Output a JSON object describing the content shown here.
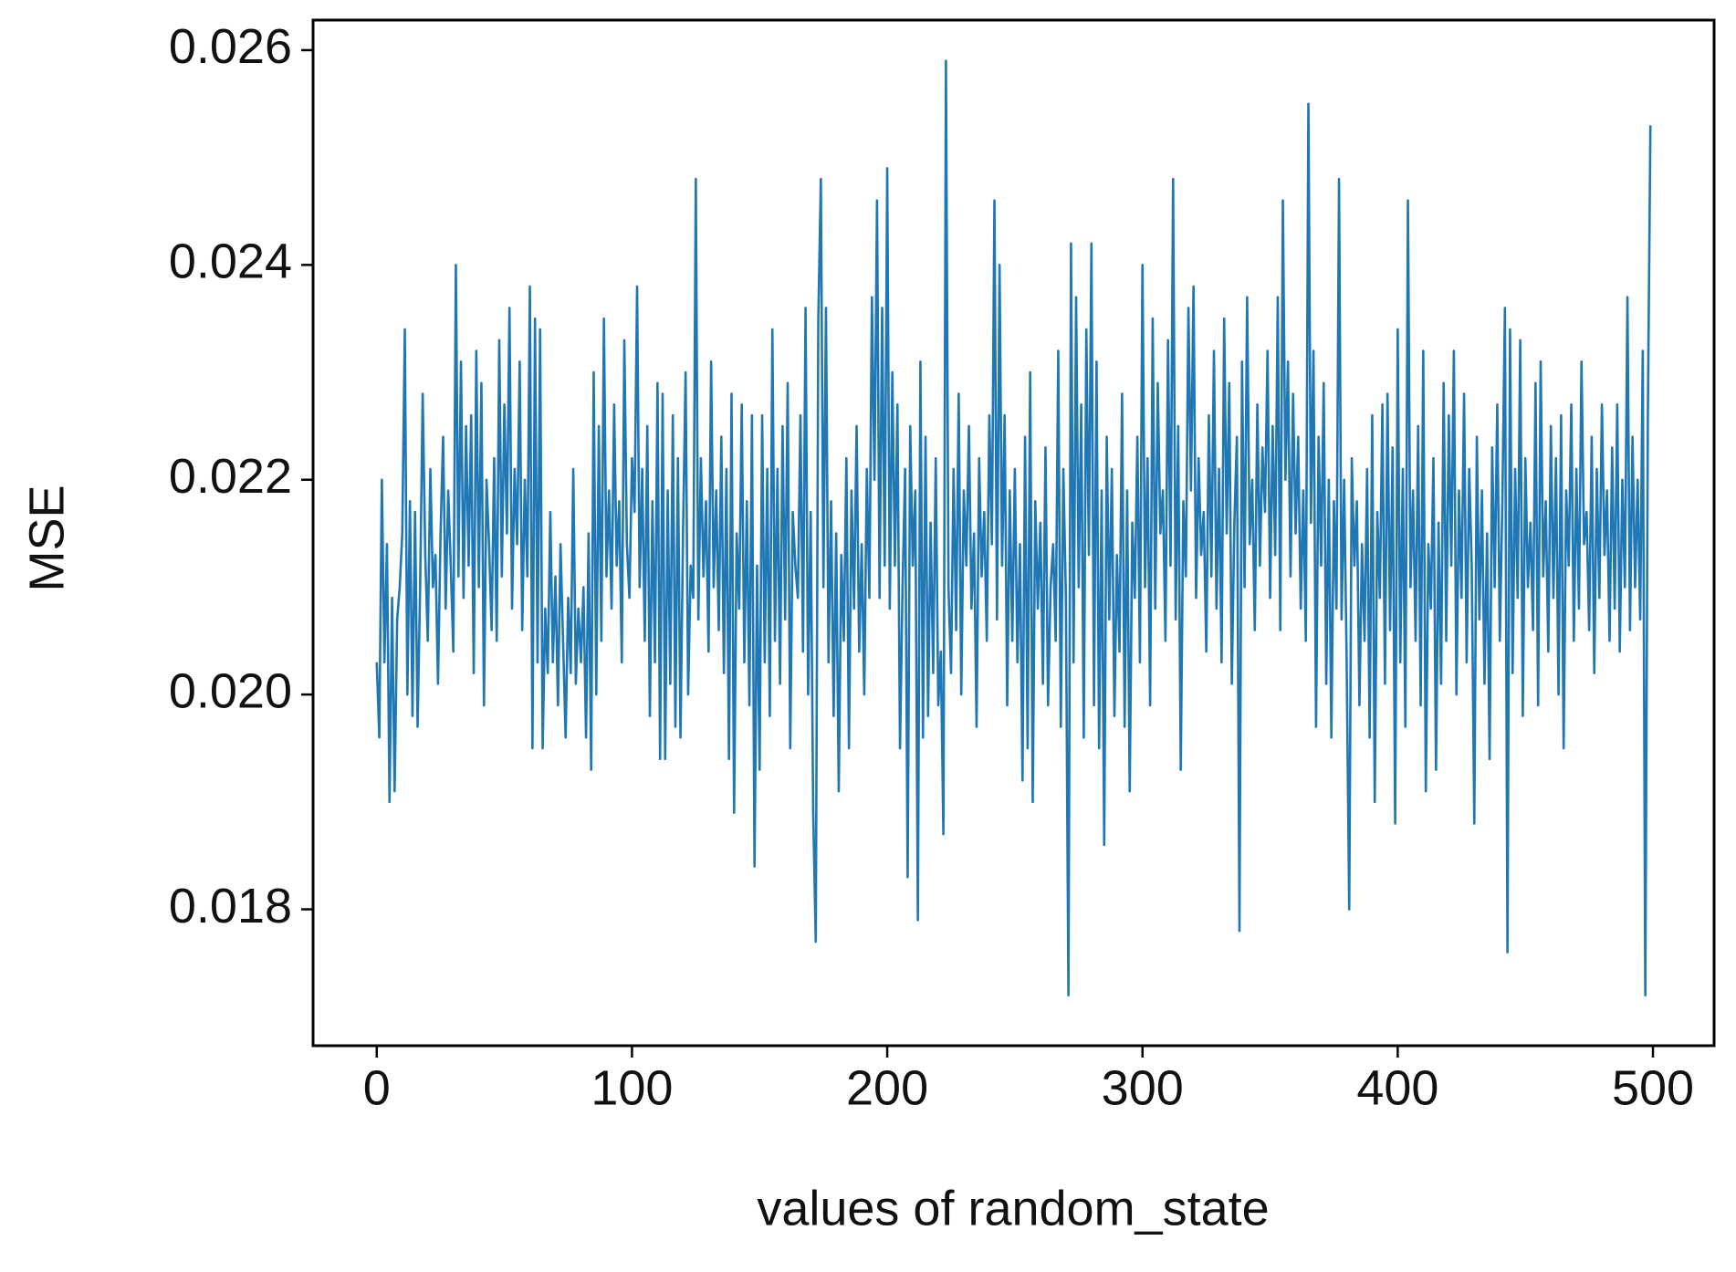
{
  "chart_data": {
    "type": "line",
    "xlabel": "values of random_state",
    "ylabel": "MSE",
    "color": "#1f77b4",
    "grid": false,
    "xlim": [
      -24.95,
      523.95
    ],
    "xticks": [
      0,
      100,
      200,
      300,
      400,
      500
    ],
    "ylim": [
      0.01673,
      0.02628
    ],
    "yticks": [
      {
        "value": 0.018,
        "label": "0.018"
      },
      {
        "value": 0.02,
        "label": "0.020"
      },
      {
        "value": 0.022,
        "label": "0.022"
      },
      {
        "value": 0.024,
        "label": "0.024"
      },
      {
        "value": 0.026,
        "label": "0.026"
      }
    ],
    "x": [
      0,
      1,
      2,
      3,
      4,
      5,
      6,
      7,
      8,
      9,
      10,
      11,
      12,
      13,
      14,
      15,
      16,
      17,
      18,
      19,
      20,
      21,
      22,
      23,
      24,
      25,
      26,
      27,
      28,
      29,
      30,
      31,
      32,
      33,
      34,
      35,
      36,
      37,
      38,
      39,
      40,
      41,
      42,
      43,
      44,
      45,
      46,
      47,
      48,
      49,
      50,
      51,
      52,
      53,
      54,
      55,
      56,
      57,
      58,
      59,
      60,
      61,
      62,
      63,
      64,
      65,
      66,
      67,
      68,
      69,
      70,
      71,
      72,
      73,
      74,
      75,
      76,
      77,
      78,
      79,
      80,
      81,
      82,
      83,
      84,
      85,
      86,
      87,
      88,
      89,
      90,
      91,
      92,
      93,
      94,
      95,
      96,
      97,
      98,
      99,
      100,
      101,
      102,
      103,
      104,
      105,
      106,
      107,
      108,
      109,
      110,
      111,
      112,
      113,
      114,
      115,
      116,
      117,
      118,
      119,
      120,
      121,
      122,
      123,
      124,
      125,
      126,
      127,
      128,
      129,
      130,
      131,
      132,
      133,
      134,
      135,
      136,
      137,
      138,
      139,
      140,
      141,
      142,
      143,
      144,
      145,
      146,
      147,
      148,
      149,
      150,
      151,
      152,
      153,
      154,
      155,
      156,
      157,
      158,
      159,
      160,
      161,
      162,
      163,
      164,
      165,
      166,
      167,
      168,
      169,
      170,
      171,
      172,
      173,
      174,
      175,
      176,
      177,
      178,
      179,
      180,
      181,
      182,
      183,
      184,
      185,
      186,
      187,
      188,
      189,
      190,
      191,
      192,
      193,
      194,
      195,
      196,
      197,
      198,
      199,
      200,
      201,
      202,
      203,
      204,
      205,
      206,
      207,
      208,
      209,
      210,
      211,
      212,
      213,
      214,
      215,
      216,
      217,
      218,
      219,
      220,
      221,
      222,
      223,
      224,
      225,
      226,
      227,
      228,
      229,
      230,
      231,
      232,
      233,
      234,
      235,
      236,
      237,
      238,
      239,
      240,
      241,
      242,
      243,
      244,
      245,
      246,
      247,
      248,
      249,
      250,
      251,
      252,
      253,
      254,
      255,
      256,
      257,
      258,
      259,
      260,
      261,
      262,
      263,
      264,
      265,
      266,
      267,
      268,
      269,
      270,
      271,
      272,
      273,
      274,
      275,
      276,
      277,
      278,
      279,
      280,
      281,
      282,
      283,
      284,
      285,
      286,
      287,
      288,
      289,
      290,
      291,
      292,
      293,
      294,
      295,
      296,
      297,
      298,
      299,
      300,
      301,
      302,
      303,
      304,
      305,
      306,
      307,
      308,
      309,
      310,
      311,
      312,
      313,
      314,
      315,
      316,
      317,
      318,
      319,
      320,
      321,
      322,
      323,
      324,
      325,
      326,
      327,
      328,
      329,
      330,
      331,
      332,
      333,
      334,
      335,
      336,
      337,
      338,
      339,
      340,
      341,
      342,
      343,
      344,
      345,
      346,
      347,
      348,
      349,
      350,
      351,
      352,
      353,
      354,
      355,
      356,
      357,
      358,
      359,
      360,
      361,
      362,
      363,
      364,
      365,
      366,
      367,
      368,
      369,
      370,
      371,
      372,
      373,
      374,
      375,
      376,
      377,
      378,
      379,
      380,
      381,
      382,
      383,
      384,
      385,
      386,
      387,
      388,
      389,
      390,
      391,
      392,
      393,
      394,
      395,
      396,
      397,
      398,
      399,
      400,
      401,
      402,
      403,
      404,
      405,
      406,
      407,
      408,
      409,
      410,
      411,
      412,
      413,
      414,
      415,
      416,
      417,
      418,
      419,
      420,
      421,
      422,
      423,
      424,
      425,
      426,
      427,
      428,
      429,
      430,
      431,
      432,
      433,
      434,
      435,
      436,
      437,
      438,
      439,
      440,
      441,
      442,
      443,
      444,
      445,
      446,
      447,
      448,
      449,
      450,
      451,
      452,
      453,
      454,
      455,
      456,
      457,
      458,
      459,
      460,
      461,
      462,
      463,
      464,
      465,
      466,
      467,
      468,
      469,
      470,
      471,
      472,
      473,
      474,
      475,
      476,
      477,
      478,
      479,
      480,
      481,
      482,
      483,
      484,
      485,
      486,
      487,
      488,
      489,
      490,
      491,
      492,
      493,
      494,
      495,
      496,
      497,
      498,
      499
    ],
    "values": [
      0.0203,
      0.0196,
      0.022,
      0.0203,
      0.0214,
      0.019,
      0.0209,
      0.0191,
      0.0207,
      0.021,
      0.0215,
      0.0234,
      0.02,
      0.0218,
      0.0198,
      0.0217,
      0.0197,
      0.021,
      0.0228,
      0.0213,
      0.0205,
      0.0221,
      0.021,
      0.0213,
      0.0201,
      0.0215,
      0.0224,
      0.0208,
      0.0219,
      0.0212,
      0.0204,
      0.024,
      0.0211,
      0.0231,
      0.0209,
      0.0225,
      0.0212,
      0.0226,
      0.0202,
      0.0232,
      0.021,
      0.0229,
      0.0199,
      0.022,
      0.0214,
      0.0206,
      0.0222,
      0.0205,
      0.0233,
      0.0211,
      0.0227,
      0.0215,
      0.0236,
      0.0208,
      0.0221,
      0.0214,
      0.0231,
      0.0206,
      0.022,
      0.0211,
      0.0238,
      0.0195,
      0.0235,
      0.0203,
      0.0234,
      0.0195,
      0.0208,
      0.0202,
      0.0217,
      0.0203,
      0.0211,
      0.0199,
      0.0214,
      0.0205,
      0.0196,
      0.0209,
      0.0202,
      0.0221,
      0.0201,
      0.0208,
      0.0203,
      0.021,
      0.0196,
      0.0215,
      0.0193,
      0.023,
      0.02,
      0.0225,
      0.0205,
      0.0235,
      0.0211,
      0.0219,
      0.0208,
      0.0227,
      0.0212,
      0.0218,
      0.0203,
      0.0233,
      0.0214,
      0.0209,
      0.0222,
      0.0217,
      0.0238,
      0.021,
      0.0221,
      0.0205,
      0.0225,
      0.0198,
      0.0218,
      0.0203,
      0.0229,
      0.0194,
      0.0228,
      0.0194,
      0.0219,
      0.0201,
      0.0226,
      0.0197,
      0.0222,
      0.0196,
      0.0215,
      0.023,
      0.02,
      0.0212,
      0.0209,
      0.0248,
      0.0207,
      0.0222,
      0.0211,
      0.0218,
      0.0204,
      0.0231,
      0.021,
      0.0219,
      0.0206,
      0.0224,
      0.0202,
      0.0221,
      0.0194,
      0.0228,
      0.0189,
      0.0215,
      0.0208,
      0.0227,
      0.0203,
      0.0218,
      0.0199,
      0.0226,
      0.0184,
      0.0212,
      0.0193,
      0.0226,
      0.0203,
      0.0221,
      0.0198,
      0.0234,
      0.0205,
      0.0221,
      0.0201,
      0.0225,
      0.0207,
      0.0229,
      0.0195,
      0.0217,
      0.0212,
      0.0209,
      0.0226,
      0.0204,
      0.0236,
      0.02,
      0.0217,
      0.0189,
      0.0177,
      0.0235,
      0.0248,
      0.021,
      0.0236,
      0.0203,
      0.0218,
      0.0198,
      0.0215,
      0.0191,
      0.0213,
      0.0205,
      0.0222,
      0.0195,
      0.0219,
      0.0208,
      0.0225,
      0.0204,
      0.0214,
      0.02,
      0.0221,
      0.0209,
      0.0237,
      0.022,
      0.0246,
      0.0209,
      0.0236,
      0.0212,
      0.0249,
      0.0208,
      0.023,
      0.0212,
      0.0227,
      0.0195,
      0.021,
      0.0221,
      0.0183,
      0.0225,
      0.0212,
      0.0219,
      0.0179,
      0.0231,
      0.0196,
      0.0224,
      0.0198,
      0.0216,
      0.0202,
      0.0222,
      0.0199,
      0.0204,
      0.0187,
      0.0259,
      0.021,
      0.0202,
      0.0221,
      0.0206,
      0.0228,
      0.02,
      0.0219,
      0.0212,
      0.0225,
      0.0208,
      0.0215,
      0.0197,
      0.0222,
      0.0211,
      0.0217,
      0.0205,
      0.0226,
      0.0214,
      0.0246,
      0.0207,
      0.024,
      0.0212,
      0.0226,
      0.0199,
      0.0219,
      0.0205,
      0.0221,
      0.0203,
      0.0214,
      0.0192,
      0.0224,
      0.0195,
      0.023,
      0.019,
      0.0218,
      0.0208,
      0.0216,
      0.0201,
      0.0223,
      0.0199,
      0.021,
      0.0214,
      0.0205,
      0.0232,
      0.0197,
      0.0221,
      0.0209,
      0.0172,
      0.0242,
      0.0203,
      0.0237,
      0.021,
      0.0227,
      0.0196,
      0.0234,
      0.0213,
      0.0242,
      0.0199,
      0.0231,
      0.0195,
      0.0219,
      0.0186,
      0.0224,
      0.0207,
      0.0221,
      0.0198,
      0.0213,
      0.0204,
      0.0228,
      0.0197,
      0.0219,
      0.0191,
      0.0216,
      0.0209,
      0.0224,
      0.0203,
      0.024,
      0.021,
      0.0222,
      0.0199,
      0.0235,
      0.0208,
      0.0229,
      0.0215,
      0.0219,
      0.0205,
      0.0233,
      0.0212,
      0.0248,
      0.0207,
      0.0225,
      0.0193,
      0.0218,
      0.0211,
      0.0236,
      0.0219,
      0.0238,
      0.0209,
      0.0222,
      0.0213,
      0.0217,
      0.0204,
      0.0226,
      0.0211,
      0.0232,
      0.0208,
      0.0221,
      0.0203,
      0.0235,
      0.0215,
      0.0229,
      0.0201,
      0.0216,
      0.0224,
      0.0178,
      0.0231,
      0.021,
      0.0237,
      0.0214,
      0.022,
      0.0206,
      0.0227,
      0.0212,
      0.0223,
      0.0217,
      0.0232,
      0.0209,
      0.0225,
      0.0213,
      0.0237,
      0.0206,
      0.0246,
      0.022,
      0.0231,
      0.0211,
      0.0228,
      0.0215,
      0.0224,
      0.0208,
      0.0219,
      0.0205,
      0.0255,
      0.0216,
      0.0232,
      0.0197,
      0.0224,
      0.0212,
      0.0229,
      0.0201,
      0.022,
      0.0196,
      0.0218,
      0.0208,
      0.0248,
      0.0207,
      0.022,
      0.0203,
      0.018,
      0.0222,
      0.0212,
      0.0218,
      0.0199,
      0.0214,
      0.0205,
      0.0221,
      0.0196,
      0.0226,
      0.019,
      0.0217,
      0.0209,
      0.0227,
      0.0201,
      0.0228,
      0.0206,
      0.0223,
      0.0188,
      0.0234,
      0.0203,
      0.0221,
      0.0197,
      0.0246,
      0.021,
      0.0219,
      0.0205,
      0.0225,
      0.0199,
      0.0232,
      0.0191,
      0.0214,
      0.0208,
      0.0222,
      0.0193,
      0.0216,
      0.0201,
      0.0229,
      0.0205,
      0.0226,
      0.0212,
      0.0232,
      0.02,
      0.0219,
      0.0209,
      0.0228,
      0.0203,
      0.0221,
      0.0212,
      0.0188,
      0.0224,
      0.0207,
      0.0219,
      0.0201,
      0.0215,
      0.0194,
      0.0223,
      0.021,
      0.0227,
      0.0205,
      0.0218,
      0.0236,
      0.0176,
      0.0234,
      0.0202,
      0.0221,
      0.0209,
      0.0233,
      0.0198,
      0.0222,
      0.021,
      0.0216,
      0.0206,
      0.0229,
      0.0199,
      0.0231,
      0.0211,
      0.0218,
      0.0204,
      0.0225,
      0.0209,
      0.0222,
      0.02,
      0.0226,
      0.0195,
      0.0219,
      0.0212,
      0.0227,
      0.0205,
      0.0221,
      0.0208,
      0.0231,
      0.0214,
      0.0217,
      0.0206,
      0.0224,
      0.0202,
      0.0221,
      0.0209,
      0.0227,
      0.0213,
      0.0219,
      0.0205,
      0.0223,
      0.0208,
      0.0227,
      0.0204,
      0.022,
      0.021,
      0.0237,
      0.0206,
      0.0224,
      0.021,
      0.022,
      0.0207,
      0.0232,
      0.0172,
      0.0226,
      0.0253
    ]
  }
}
